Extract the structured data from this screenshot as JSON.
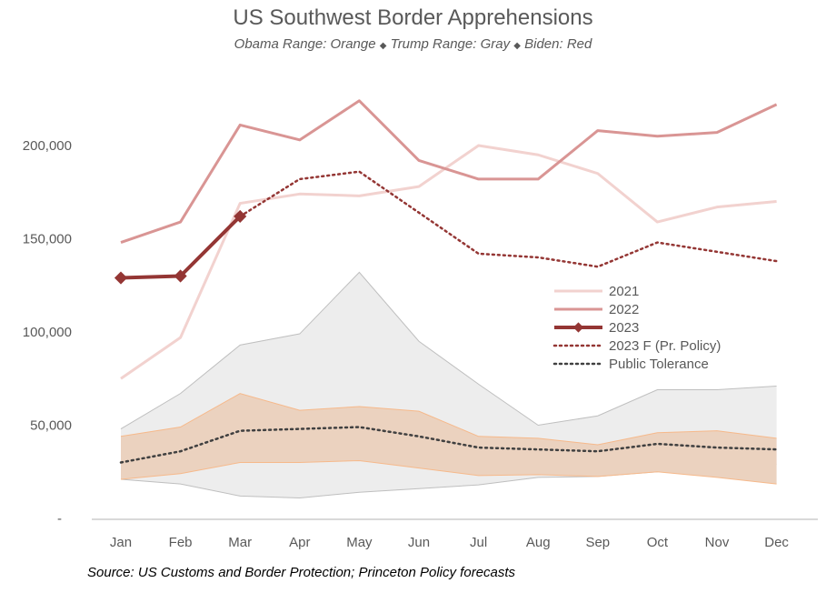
{
  "chart_data": {
    "type": "line",
    "title": "US Southwest Border Apprehensions",
    "subtitle_parts": [
      "Obama Range: Orange",
      "Trump Range: Gray",
      "Biden: Red"
    ],
    "subtitle_separator": "◆",
    "source": "Source: US Customs and Border Protection; Princeton Policy forecasts",
    "xlabel": "",
    "ylabel": "",
    "ylim": [
      0,
      220000
    ],
    "yticks": [
      0,
      50000,
      100000,
      150000,
      200000
    ],
    "ytick_labels": [
      "-",
      "50,000",
      "100,000",
      "150,000",
      "200,000"
    ],
    "categories": [
      "Jan",
      "Feb",
      "Mar",
      "Apr",
      "May",
      "Jun",
      "Jul",
      "Aug",
      "Sep",
      "Oct",
      "Nov",
      "Dec"
    ],
    "grid": false,
    "legend_position": "center-right",
    "bands": [
      {
        "name": "Trump Range",
        "color": "#ededed",
        "edge_color": "#bfbfbf",
        "upper": [
          48000,
          67000,
          93000,
          99000,
          132000,
          95000,
          72000,
          50000,
          55000,
          69000,
          69000,
          71000
        ],
        "lower": [
          21000,
          18500,
          12000,
          11000,
          14000,
          16000,
          18000,
          22000,
          22500,
          25000,
          29000,
          29000
        ]
      },
      {
        "name": "Obama Range",
        "color": "#ebd2bf",
        "edge_color": "#f6b98b",
        "upper": [
          44000,
          49000,
          67000,
          58000,
          60000,
          57500,
          44000,
          43000,
          39500,
          46000,
          47000,
          43000
        ],
        "lower": [
          21000,
          24000,
          30000,
          30000,
          31000,
          27000,
          23000,
          23500,
          22500,
          25000,
          22000,
          18500
        ]
      }
    ],
    "series": [
      {
        "name": "2021",
        "color": "#f2d2cf",
        "style": "solid",
        "values": [
          75000,
          97000,
          169000,
          174000,
          173000,
          178000,
          200000,
          195000,
          185000,
          159000,
          167000,
          170000
        ]
      },
      {
        "name": "2022",
        "color": "#d99594",
        "style": "solid",
        "values": [
          148000,
          159000,
          211000,
          203000,
          224000,
          192000,
          182000,
          182000,
          208000,
          205000,
          207000,
          222000
        ]
      },
      {
        "name": "2023",
        "color": "#943634",
        "style": "solid-marker",
        "values": [
          129000,
          130000,
          162000,
          null,
          null,
          null,
          null,
          null,
          null,
          null,
          null,
          null
        ]
      },
      {
        "name": "2023 F (Pr. Policy)",
        "color": "#943634",
        "style": "dotted",
        "values": [
          null,
          null,
          162000,
          182000,
          186000,
          164000,
          142000,
          140000,
          135000,
          148000,
          143000,
          138000
        ]
      },
      {
        "name": "Public Tolerance",
        "color": "#404040",
        "style": "dotted",
        "values": [
          30000,
          36000,
          47000,
          48000,
          49000,
          44000,
          38000,
          37000,
          36000,
          40000,
          38000,
          37000
        ]
      }
    ]
  }
}
